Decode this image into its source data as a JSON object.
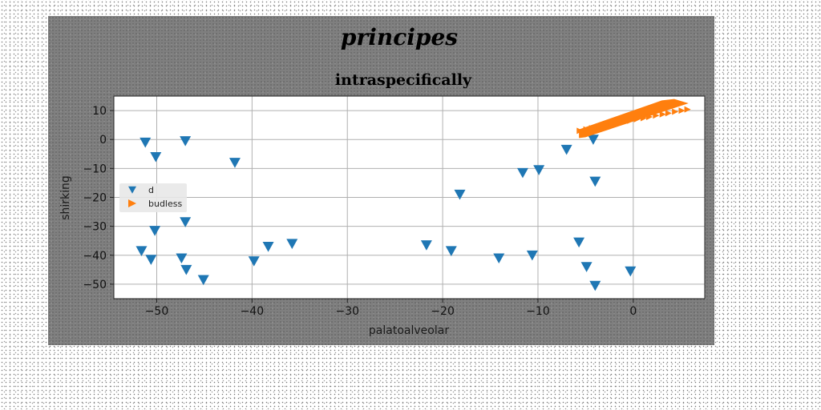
{
  "colors": {
    "series_blue": "#1f77b4",
    "series_orange": "#ff7f0e",
    "figure_bg": "#7f7f7f",
    "plot_bg": "#ffffff",
    "grid": "#b0b0b0"
  },
  "chart_data": {
    "type": "scatter",
    "suptitle": "principes",
    "title": "intraspecifically",
    "xlabel": "palatoalveolar",
    "ylabel": "shirking",
    "xlim": [
      -54.5,
      7.5
    ],
    "ylim": [
      -55,
      15
    ],
    "xticks": [
      -50,
      -40,
      -30,
      -20,
      -10,
      0
    ],
    "xtick_labels": [
      "−50",
      "−40",
      "−30",
      "−20",
      "−10",
      "0"
    ],
    "yticks": [
      -50,
      -40,
      -30,
      -20,
      -10,
      0,
      10
    ],
    "ytick_labels": [
      "−50",
      "−40",
      "−30",
      "−20",
      "−10",
      "0",
      "10"
    ],
    "grid": true,
    "legend_position": "center-left",
    "series": [
      {
        "name": "d",
        "marker": "triangle-down",
        "color": "#1f77b4",
        "points": [
          [
            -51.2,
            -1
          ],
          [
            -50.1,
            -6
          ],
          [
            -47.0,
            -0.5
          ],
          [
            -41.8,
            -8
          ],
          [
            -50.2,
            -31.5
          ],
          [
            -47.0,
            -28.5
          ],
          [
            -51.6,
            -38.5
          ],
          [
            -50.6,
            -41.5
          ],
          [
            -47.4,
            -41
          ],
          [
            -46.9,
            -45
          ],
          [
            -45.1,
            -48.5
          ],
          [
            -39.8,
            -42
          ],
          [
            -38.3,
            -37
          ],
          [
            -35.8,
            -36
          ],
          [
            -21.7,
            -36.5
          ],
          [
            -19.1,
            -38.5
          ],
          [
            -18.2,
            -19
          ],
          [
            -14.1,
            -41
          ],
          [
            -11.6,
            -11.5
          ],
          [
            -10.6,
            -40
          ],
          [
            -9.9,
            -10.5
          ],
          [
            -7.0,
            -3.5
          ],
          [
            -5.7,
            -35.5
          ],
          [
            -4.9,
            -44
          ],
          [
            -4.2,
            0
          ],
          [
            -4.0,
            -14.5
          ],
          [
            -4.0,
            -50.5
          ],
          [
            -0.3,
            -45.5
          ]
        ]
      },
      {
        "name": "budless",
        "marker": "triangle-right",
        "color": "#ff7f0e",
        "points": [
          [
            -5.6,
            3.0
          ],
          [
            -4.9,
            3.5
          ],
          [
            -4.3,
            3.9
          ],
          [
            -3.6,
            4.4
          ],
          [
            -2.9,
            4.8
          ],
          [
            -2.3,
            5.2
          ],
          [
            -1.6,
            5.7
          ],
          [
            -0.9,
            6.1
          ],
          [
            -0.3,
            6.5
          ],
          [
            0.4,
            7.0
          ],
          [
            1.1,
            7.4
          ],
          [
            1.7,
            7.8
          ],
          [
            2.4,
            8.3
          ],
          [
            3.1,
            8.7
          ],
          [
            3.7,
            9.1
          ],
          [
            4.4,
            9.6
          ],
          [
            5.1,
            10.0
          ],
          [
            5.7,
            10.4
          ]
        ],
        "rendered_as": "shape",
        "shape_vertices": [
          [
            -5.7,
            0.5
          ],
          [
            -5.7,
            3.5
          ],
          [
            3.0,
            13.5
          ],
          [
            4.3,
            14.0
          ],
          [
            5.8,
            12.5
          ],
          [
            -5.0,
            0.8
          ]
        ]
      }
    ]
  }
}
